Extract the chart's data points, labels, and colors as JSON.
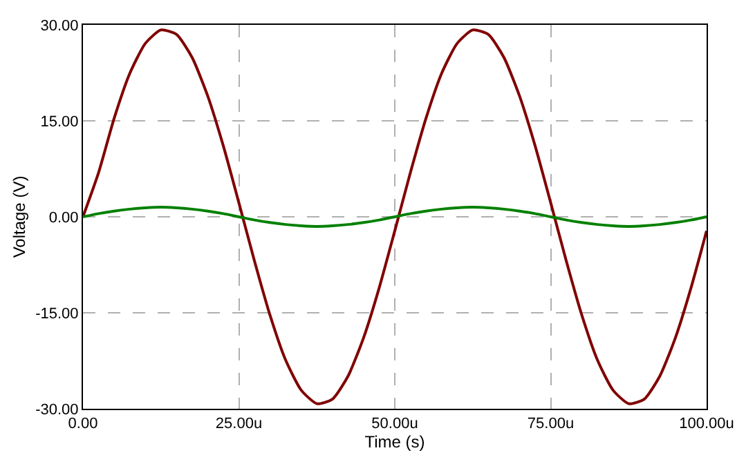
{
  "chart_data": {
    "type": "line",
    "xlabel": "Time (s)",
    "ylabel": "Voltage (V)",
    "x": [
      0,
      2.5,
      5,
      7.5,
      10,
      12.5,
      15,
      17.5,
      20,
      22.5,
      25,
      27.5,
      30,
      32.5,
      35,
      37.5,
      40,
      42.5,
      45,
      47.5,
      50,
      52.5,
      55,
      57.5,
      60,
      62.5,
      65,
      67.5,
      70,
      72.5,
      75,
      77.5,
      80,
      82.5,
      85,
      87.5,
      90,
      92.5,
      95,
      97.5,
      100
    ],
    "series": [
      {
        "color": "#800000",
        "values": [
          0,
          6.9,
          15.4,
          22.4,
          27.1,
          29.2,
          28.5,
          24.9,
          18.9,
          11.1,
          2.2,
          -6.9,
          -15.4,
          -22.4,
          -27.1,
          -29.2,
          -28.5,
          -24.9,
          -18.9,
          -11.1,
          -2.2,
          6.9,
          15.4,
          22.4,
          27.1,
          29.2,
          28.5,
          24.9,
          18.9,
          11.1,
          2.2,
          -6.9,
          -15.4,
          -22.4,
          -27.1,
          -29.2,
          -28.5,
          -24.9,
          -18.9,
          -11.1,
          -2.2
        ]
      },
      {
        "color": "#008000",
        "values": [
          0,
          0.5,
          0.9,
          1.2,
          1.4,
          1.5,
          1.4,
          1.2,
          0.9,
          0.5,
          0,
          -0.5,
          -0.9,
          -1.2,
          -1.4,
          -1.5,
          -1.4,
          -1.2,
          -0.9,
          -0.5,
          0,
          0.5,
          0.9,
          1.2,
          1.4,
          1.5,
          1.4,
          1.2,
          0.9,
          0.5,
          0,
          -0.5,
          -0.9,
          -1.2,
          -1.4,
          -1.5,
          -1.4,
          -1.2,
          -0.9,
          -0.5,
          0
        ]
      }
    ],
    "xlim": [
      0,
      100
    ],
    "xticks": [
      {
        "value": 0,
        "label": "0.00"
      },
      {
        "value": 25,
        "label": "25.00u"
      },
      {
        "value": 50,
        "label": "50.00u"
      },
      {
        "value": 75,
        "label": "75.00u"
      },
      {
        "value": 100,
        "label": "100.00u"
      }
    ],
    "ylim": [
      -30,
      30
    ],
    "yticks": [
      {
        "value": -30,
        "label": "-30.00"
      },
      {
        "value": -15,
        "label": "-15.00"
      },
      {
        "value": 0,
        "label": "0.00"
      },
      {
        "value": 15,
        "label": "15.00"
      },
      {
        "value": 30,
        "label": "30.00"
      }
    ],
    "grid": true,
    "legend": false,
    "marker": "none",
    "line_style": "solid"
  }
}
